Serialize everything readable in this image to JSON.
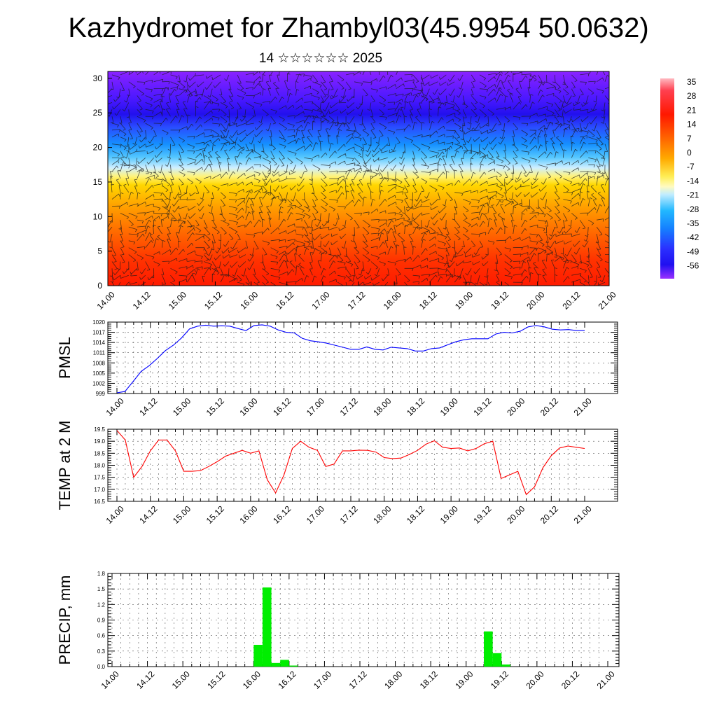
{
  "title": "Kazhydromet for Zhambyl03(45.9954 50.0632)",
  "subtitle": "14 ☆☆☆☆☆☆ 2025",
  "chart_data": [
    {
      "type": "heatmap",
      "name": "temperature-wind-cross-section",
      "y_ticks": [
        "0",
        "5",
        "10",
        "15",
        "20",
        "25",
        "30"
      ],
      "ylim": [
        0,
        31
      ],
      "x_ticks": [
        "14.00",
        "14.12",
        "15.00",
        "15.12",
        "16.00",
        "16.12",
        "17.00",
        "17.12",
        "18.00",
        "18.12",
        "19.00",
        "19.12",
        "20.00",
        "20.12",
        "21.00"
      ],
      "grid": false,
      "colorbar_labels": [
        "35",
        "28",
        "21",
        "14",
        "7",
        "0",
        "-7",
        "-14",
        "-21",
        "-28",
        "-35",
        "-42",
        "-49",
        "-56"
      ],
      "colors": {
        "warm": "#ff2200",
        "orange": "#ff9900",
        "yellow": "#fff060",
        "cyan": "#10b8ff",
        "blue": "#2020ff",
        "violet": "#7a20ff"
      }
    },
    {
      "type": "line",
      "name": "pmsl",
      "ylabel": "PMSL",
      "y_ticks": [
        "999",
        "1002",
        "1005",
        "1008",
        "1011",
        "1014",
        "1017",
        "1020"
      ],
      "ylim": [
        999,
        1020
      ],
      "x_ticks": [
        "14.00",
        "14.12",
        "15.00",
        "15.12",
        "16.00",
        "16.12",
        "17.00",
        "17.12",
        "18.00",
        "18.12",
        "19.00",
        "19.12",
        "20.00",
        "20.12",
        "21.00"
      ],
      "grid": true,
      "color": "#0000ff",
      "values": [
        999.2,
        999.6,
        1002.5,
        1005.5,
        1007.2,
        1009.3,
        1011.6,
        1013.2,
        1015.3,
        1018.0,
        1018.8,
        1019.1,
        1018.8,
        1018.9,
        1018.8,
        1018.1,
        1017.5,
        1019.0,
        1019.2,
        1018.8,
        1017.7,
        1017.0,
        1016.8,
        1015.2,
        1014.5,
        1014.2,
        1013.8,
        1013.2,
        1012.6,
        1012.0,
        1012.0,
        1012.7,
        1012.0,
        1011.8,
        1012.6,
        1012.4,
        1012.2,
        1011.5,
        1011.5,
        1012.2,
        1012.4,
        1013.3,
        1014.2,
        1014.8,
        1015.1,
        1015.1,
        1015.1,
        1016.5,
        1017.0,
        1016.8,
        1017.3,
        1018.6,
        1019.0,
        1018.6,
        1017.9,
        1017.7,
        1017.8,
        1017.5,
        1017.5
      ]
    },
    {
      "type": "line",
      "name": "temp-2m",
      "ylabel": "TEMP at 2 M",
      "y_ticks": [
        "16.5",
        "17.0",
        "17.5",
        "18.0",
        "18.5",
        "19.0",
        "19.5"
      ],
      "ylim": [
        16.5,
        19.5
      ],
      "x_ticks": [
        "14.00",
        "14.12",
        "15.00",
        "15.12",
        "16.00",
        "16.12",
        "17.00",
        "17.12",
        "18.00",
        "18.12",
        "19.00",
        "19.12",
        "20.00",
        "20.12",
        "21.00"
      ],
      "grid": true,
      "color": "#ff0000",
      "values": [
        19.45,
        19.05,
        17.5,
        17.95,
        18.6,
        19.05,
        19.05,
        18.6,
        17.75,
        17.75,
        17.78,
        17.95,
        18.15,
        18.38,
        18.5,
        18.62,
        18.5,
        18.6,
        17.4,
        16.85,
        17.6,
        18.7,
        19.0,
        18.75,
        18.62,
        17.95,
        18.05,
        18.6,
        18.6,
        18.63,
        18.62,
        18.55,
        18.32,
        18.28,
        18.3,
        18.45,
        18.62,
        18.88,
        19.02,
        18.75,
        18.7,
        18.72,
        18.6,
        18.7,
        18.9,
        19.0,
        17.45,
        17.6,
        17.75,
        16.78,
        17.1,
        17.9,
        18.4,
        18.72,
        18.8,
        18.75,
        18.7
      ]
    },
    {
      "type": "bar",
      "name": "precip",
      "ylabel": "PRECIP, mm",
      "y_ticks": [
        "0.0",
        "0.3",
        "0.6",
        "0.9",
        "1.2",
        "1.5",
        "1.8"
      ],
      "ylim": [
        0,
        1.8
      ],
      "x_ticks": [
        "14.00",
        "14.12",
        "15.00",
        "15.12",
        "16.00",
        "16.12",
        "17.00",
        "17.12",
        "18.00",
        "18.12",
        "19.00",
        "19.12",
        "20.00",
        "20.12",
        "21.00"
      ],
      "grid": true,
      "color": "#00ee00",
      "bars": [
        {
          "t": 16.0,
          "value": 0.42
        },
        {
          "t": 16.125,
          "value": 1.53
        },
        {
          "t": 16.25,
          "value": 0.07
        },
        {
          "t": 16.375,
          "value": 0.13
        },
        {
          "t": 16.5,
          "value": 0.02
        },
        {
          "t": 19.25,
          "value": 0.68
        },
        {
          "t": 19.375,
          "value": 0.26
        },
        {
          "t": 19.5,
          "value": 0.04
        }
      ]
    }
  ]
}
